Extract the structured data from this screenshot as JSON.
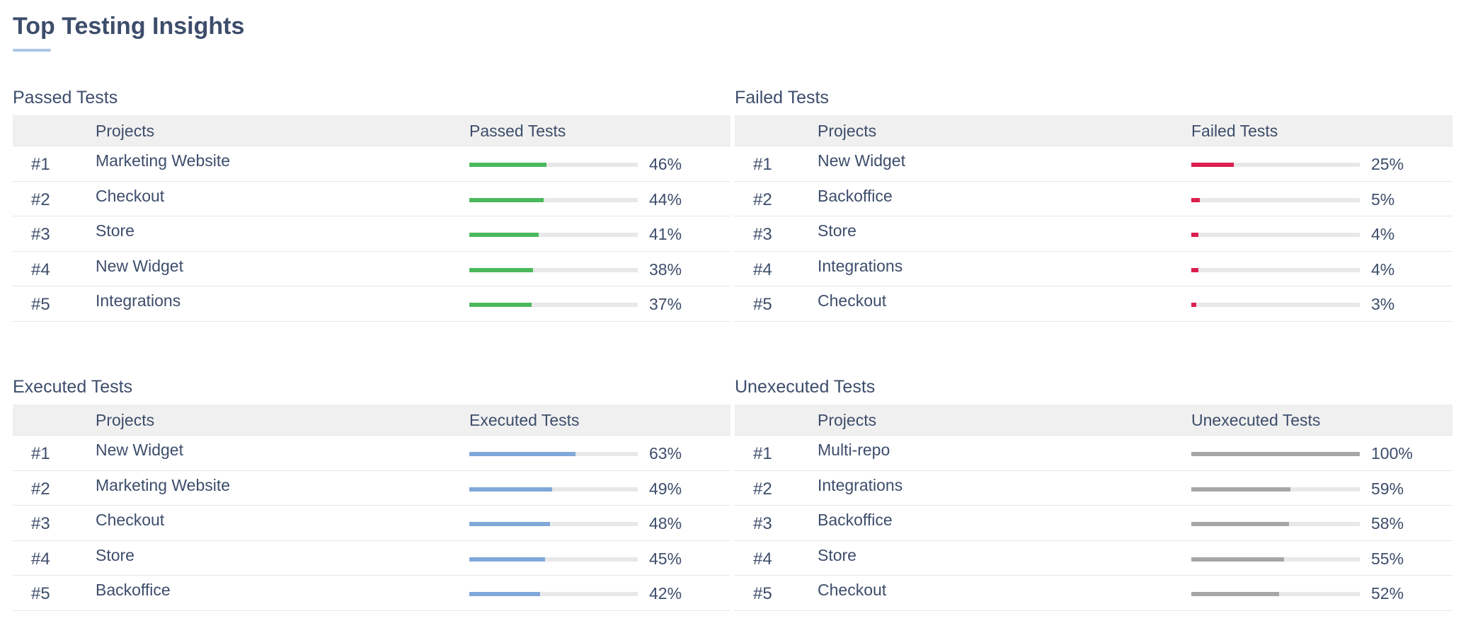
{
  "page": {
    "title": "Top Testing Insights"
  },
  "colors": {
    "passed": "#4cb85c",
    "failed": "#dc1f4e",
    "executed": "#80a8d8",
    "unexecuted": "#a6a6a6"
  },
  "panels": [
    {
      "title": "Passed Tests",
      "col_project": "Projects",
      "col_metric": "Passed Tests",
      "color_key": "passed",
      "rows": [
        {
          "rank": "#1",
          "project": "Marketing Website",
          "pct_label": "46%",
          "value": 46
        },
        {
          "rank": "#2",
          "project": "Checkout",
          "pct_label": "44%",
          "value": 44
        },
        {
          "rank": "#3",
          "project": "Store",
          "pct_label": "41%",
          "value": 41
        },
        {
          "rank": "#4",
          "project": "New Widget",
          "pct_label": "38%",
          "value": 38
        },
        {
          "rank": "#5",
          "project": "Integrations",
          "pct_label": "37%",
          "value": 37
        }
      ]
    },
    {
      "title": "Failed Tests",
      "col_project": "Projects",
      "col_metric": "Failed Tests",
      "color_key": "failed",
      "rows": [
        {
          "rank": "#1",
          "project": "New Widget",
          "pct_label": "25%",
          "value": 25
        },
        {
          "rank": "#2",
          "project": "Backoffice",
          "pct_label": "5%",
          "value": 5
        },
        {
          "rank": "#3",
          "project": "Store",
          "pct_label": "4%",
          "value": 4
        },
        {
          "rank": "#4",
          "project": "Integrations",
          "pct_label": "4%",
          "value": 4
        },
        {
          "rank": "#5",
          "project": "Checkout",
          "pct_label": "3%",
          "value": 3
        }
      ]
    },
    {
      "title": "Executed Tests",
      "col_project": "Projects",
      "col_metric": "Executed Tests",
      "color_key": "executed",
      "rows": [
        {
          "rank": "#1",
          "project": "New Widget",
          "pct_label": "63%",
          "value": 63
        },
        {
          "rank": "#2",
          "project": "Marketing Website",
          "pct_label": "49%",
          "value": 49
        },
        {
          "rank": "#3",
          "project": "Checkout",
          "pct_label": "48%",
          "value": 48
        },
        {
          "rank": "#4",
          "project": "Store",
          "pct_label": "45%",
          "value": 45
        },
        {
          "rank": "#5",
          "project": "Backoffice",
          "pct_label": "42%",
          "value": 42
        }
      ]
    },
    {
      "title": "Unexecuted Tests",
      "col_project": "Projects",
      "col_metric": "Unexecuted Tests",
      "color_key": "unexecuted",
      "rows": [
        {
          "rank": "#1",
          "project": "Multi-repo",
          "pct_label": "100%",
          "value": 100
        },
        {
          "rank": "#2",
          "project": "Integrations",
          "pct_label": "59%",
          "value": 59
        },
        {
          "rank": "#3",
          "project": "Backoffice",
          "pct_label": "58%",
          "value": 58
        },
        {
          "rank": "#4",
          "project": "Store",
          "pct_label": "55%",
          "value": 55
        },
        {
          "rank": "#5",
          "project": "Checkout",
          "pct_label": "52%",
          "value": 52
        }
      ]
    }
  ]
}
